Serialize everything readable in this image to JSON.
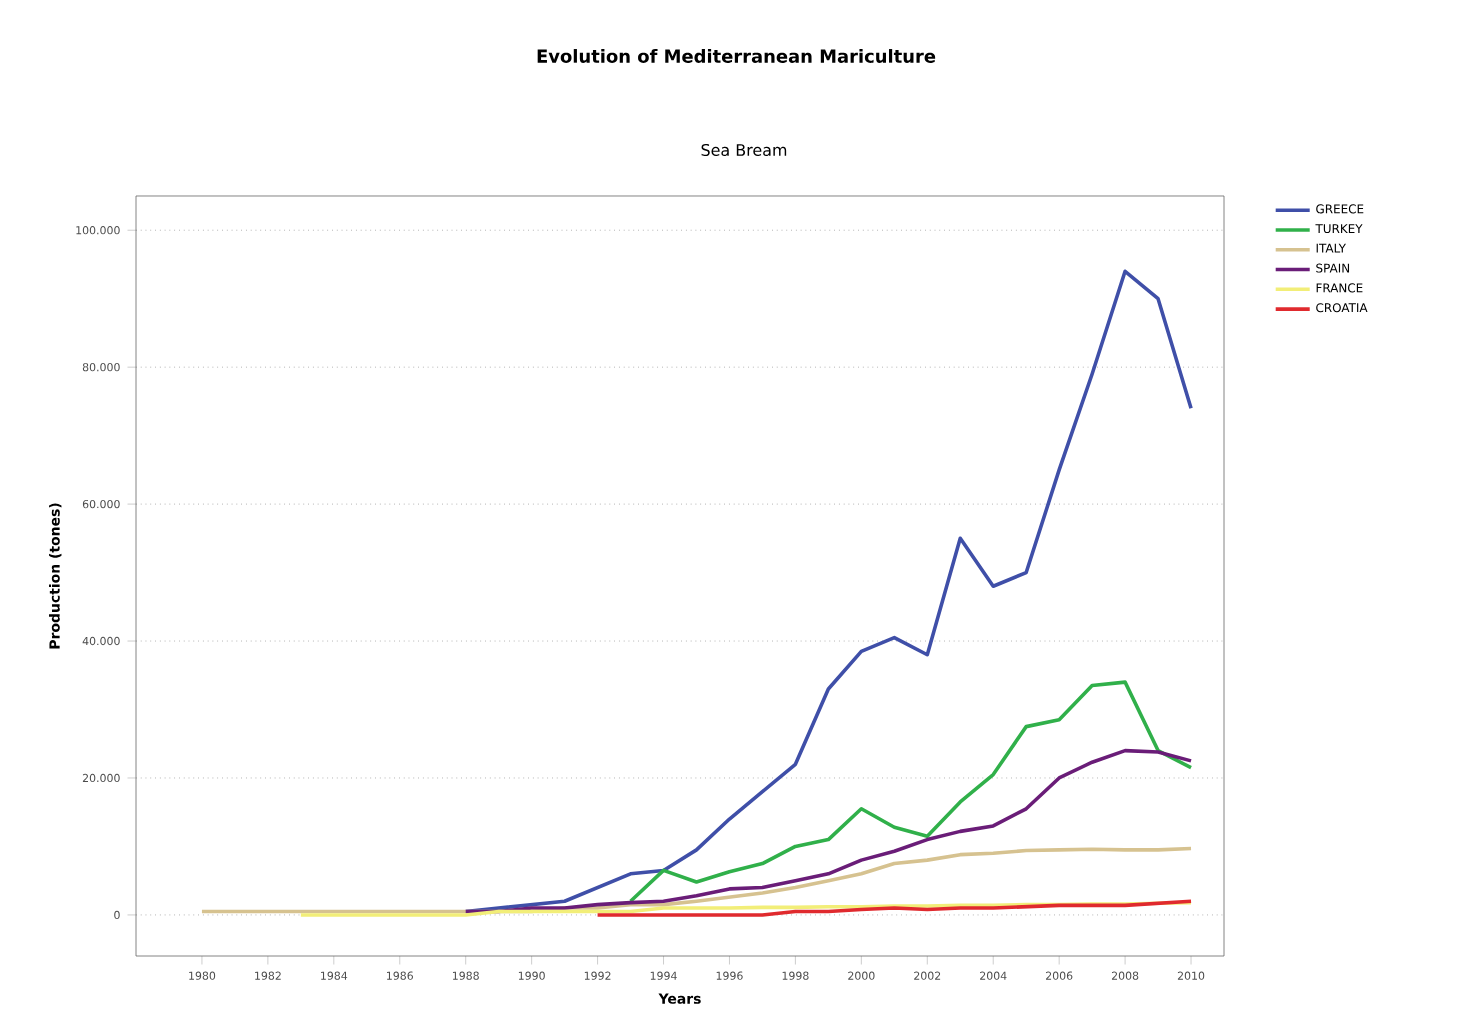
{
  "chart_data": {
    "type": "line",
    "title": "Evolution of Mediterranean Mariculture",
    "subtitle": "Sea Bream",
    "xlabel": "Years",
    "ylabel": "Production (tones)",
    "x": [
      1980,
      1981,
      1982,
      1983,
      1984,
      1985,
      1986,
      1987,
      1988,
      1989,
      1990,
      1991,
      1992,
      1993,
      1994,
      1995,
      1996,
      1997,
      1998,
      1999,
      2000,
      2001,
      2002,
      2003,
      2004,
      2005,
      2006,
      2007,
      2008,
      2009,
      2010
    ],
    "series": [
      {
        "name": "GREECE",
        "color": "#3f4fa8",
        "values": [
          null,
          null,
          null,
          null,
          null,
          null,
          null,
          null,
          500,
          1000,
          1500,
          2000,
          4000,
          6000,
          6500,
          9500,
          14000,
          18000,
          22000,
          33000,
          38500,
          40500,
          38000,
          55000,
          48000,
          50000,
          65000,
          79000,
          94000,
          90000,
          74000
        ]
      },
      {
        "name": "TURKEY",
        "color": "#30b04a",
        "values": [
          null,
          null,
          null,
          null,
          null,
          null,
          null,
          null,
          null,
          null,
          null,
          null,
          null,
          2000,
          6500,
          4800,
          6300,
          7500,
          10000,
          11000,
          15500,
          12800,
          11500,
          16500,
          20500,
          27500,
          28500,
          33500,
          34000,
          24000,
          21500
        ]
      },
      {
        "name": "ITALY",
        "color": "#d6c290",
        "values": [
          500,
          500,
          500,
          500,
          500,
          500,
          500,
          500,
          500,
          500,
          500,
          1000,
          1000,
          1500,
          1500,
          2000,
          2600,
          3200,
          4000,
          5000,
          6000,
          7500,
          8000,
          8800,
          9000,
          9400,
          9500,
          9600,
          9500,
          9500,
          9700
        ]
      },
      {
        "name": "SPAIN",
        "color": "#6a1d78",
        "values": [
          null,
          null,
          null,
          null,
          null,
          null,
          null,
          null,
          500,
          500,
          1000,
          1000,
          1500,
          1800,
          2000,
          2800,
          3800,
          4000,
          5000,
          6000,
          8000,
          9300,
          11000,
          12200,
          13000,
          15500,
          20000,
          22300,
          24000,
          23800,
          22500
        ]
      },
      {
        "name": "FRANCE",
        "color": "#f2ee78",
        "values": [
          null,
          null,
          null,
          0,
          0,
          0,
          0,
          0,
          0,
          500,
          500,
          500,
          500,
          500,
          1000,
          1000,
          1000,
          1100,
          1100,
          1200,
          1200,
          1300,
          1300,
          1400,
          1400,
          1500,
          1500,
          1600,
          1600,
          1700,
          1800
        ]
      },
      {
        "name": "CROATIA",
        "color": "#e02a2e",
        "values": [
          null,
          null,
          null,
          null,
          null,
          null,
          null,
          null,
          null,
          null,
          null,
          null,
          0,
          0,
          0,
          0,
          0,
          0,
          500,
          500,
          800,
          1000,
          800,
          1000,
          1000,
          1200,
          1400,
          1400,
          1400,
          1700,
          2000
        ]
      }
    ],
    "xlim": [
      1978,
      2011
    ],
    "xticks": [
      1980,
      1982,
      1984,
      1986,
      1988,
      1990,
      1992,
      1994,
      1996,
      1998,
      2000,
      2002,
      2004,
      2006,
      2008,
      2010
    ],
    "ylim": [
      -6000,
      105000
    ],
    "yticks": [
      {
        "value": 0,
        "label": "0"
      },
      {
        "value": 20000,
        "label": "20.000"
      },
      {
        "value": 40000,
        "label": "40.000"
      },
      {
        "value": 60000,
        "label": "60.000"
      },
      {
        "value": 80000,
        "label": "80.000"
      },
      {
        "value": 100000,
        "label": "100.000"
      }
    ],
    "grid": "y",
    "legend": "right",
    "marker": "none",
    "line_style": "solid"
  }
}
